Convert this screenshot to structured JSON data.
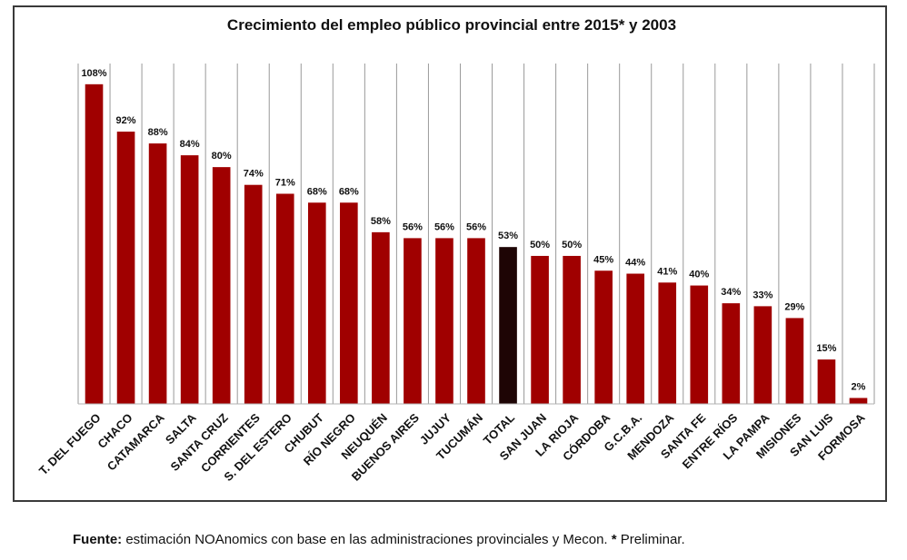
{
  "chart_data": {
    "type": "bar",
    "title": "Crecimiento del empleo público provincial entre 2015* y 2003",
    "xlabel": "",
    "ylabel": "",
    "ylim": [
      0,
      115
    ],
    "grid": "vertical separators between categories",
    "legend": "none",
    "categories": [
      "T. DEL FUEGO",
      "CHACO",
      "CATAMARCA",
      "SALTA",
      "SANTA CRUZ",
      "CORRIENTES",
      "S. DEL ESTERO",
      "CHUBUT",
      "RÍO NEGRO",
      "NEUQUÉN",
      "BUENOS AIRES",
      "JUJUY",
      "TUCUMÁN",
      "TOTAL",
      "SAN JUAN",
      "LA RIOJA",
      "CÓRDOBA",
      "G.C.B.A.",
      "MENDOZA",
      "SANTA FE",
      "ENTRE RÍOS",
      "LA PAMPA",
      "MISIONES",
      "SAN LUIS",
      "FORMOSA"
    ],
    "values": [
      108,
      92,
      88,
      84,
      80,
      74,
      71,
      68,
      68,
      58,
      56,
      56,
      56,
      53,
      50,
      50,
      45,
      44,
      41,
      40,
      34,
      33,
      29,
      15,
      2
    ],
    "value_labels": [
      "108%",
      "92%",
      "88%",
      "84%",
      "80%",
      "74%",
      "71%",
      "68%",
      "68%",
      "58%",
      "56%",
      "56%",
      "56%",
      "53%",
      "50%",
      "50%",
      "45%",
      "44%",
      "41%",
      "40%",
      "34%",
      "33%",
      "29%",
      "15%",
      "2%"
    ],
    "highlight_category": "TOTAL",
    "bar_color": "#a00000",
    "highlight_color": "#1e0505"
  },
  "footer": {
    "source_label": "Fuente:",
    "source_text": " estimación NOAnomics con base en las administraciones provinciales y Mecon. ",
    "preliminary_mark": "*",
    "preliminary_text": " Preliminar."
  }
}
